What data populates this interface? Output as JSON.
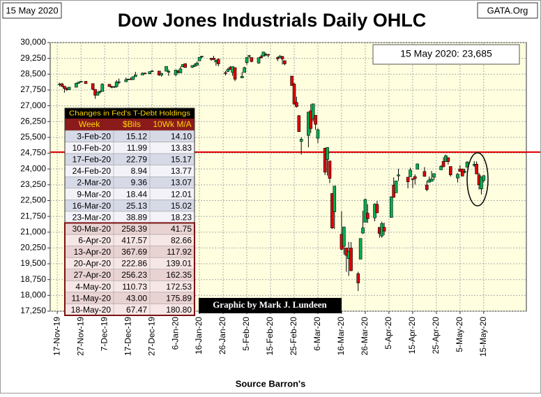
{
  "chart_data": {
    "type": "candlestick",
    "title": "Dow Jones Industrials Daily OHLC",
    "date_label": "15 May 2020",
    "source_label": "GATA.Org",
    "annotation": "15 May 2020: 23,685",
    "credit": "Graphic by Mark J. Lundeen",
    "xlabel": "Source Barron's",
    "up_color": "#00b050",
    "down_color": "#e00000",
    "hline": {
      "value": 24800,
      "color": "#e00000"
    },
    "grid": true,
    "xlim": [
      "14-Nov-19",
      "2-Jun-20"
    ],
    "xticks": [
      "17-Nov-19",
      "27-Nov-19",
      "7-Dec-19",
      "17-Dec-19",
      "27-Dec-19",
      "6-Jan-20",
      "16-Jan-20",
      "26-Jan-20",
      "5-Feb-20",
      "15-Feb-20",
      "25-Feb-20",
      "6-Mar-20",
      "16-Mar-20",
      "26-Mar-20",
      "5-Apr-20",
      "15-Apr-20",
      "25-Apr-20",
      "5-May-20",
      "15-May-20"
    ],
    "ylim": [
      17250,
      30000
    ],
    "yticks": [
      {
        "value": 17250,
        "label": "17,250"
      },
      {
        "value": 18000,
        "label": "18,000"
      },
      {
        "value": 18750,
        "label": "18,750"
      },
      {
        "value": 19500,
        "label": "19,500"
      },
      {
        "value": 20250,
        "label": "20,250"
      },
      {
        "value": 21000,
        "label": "21,000"
      },
      {
        "value": 21750,
        "label": "21,750"
      },
      {
        "value": 22500,
        "label": "22,500"
      },
      {
        "value": 23250,
        "label": "23,250"
      },
      {
        "value": 24000,
        "label": "24,000"
      },
      {
        "value": 24750,
        "label": "24,750"
      },
      {
        "value": 25500,
        "label": "25,500"
      },
      {
        "value": 26250,
        "label": "26,250"
      },
      {
        "value": 27000,
        "label": "27,000"
      },
      {
        "value": 27750,
        "label": "27,750"
      },
      {
        "value": 28500,
        "label": "28,500"
      },
      {
        "value": 29250,
        "label": "29,250"
      },
      {
        "value": 30000,
        "label": "30,000"
      }
    ],
    "x": [
      "18-Nov-19",
      "19-Nov-19",
      "20-Nov-19",
      "21-Nov-19",
      "22-Nov-19",
      "25-Nov-19",
      "26-Nov-19",
      "27-Nov-19",
      "29-Nov-19",
      "2-Dec-19",
      "3-Dec-19",
      "4-Dec-19",
      "5-Dec-19",
      "6-Dec-19",
      "9-Dec-19",
      "10-Dec-19",
      "11-Dec-19",
      "12-Dec-19",
      "13-Dec-19",
      "16-Dec-19",
      "17-Dec-19",
      "18-Dec-19",
      "19-Dec-19",
      "20-Dec-19",
      "23-Dec-19",
      "24-Dec-19",
      "26-Dec-19",
      "27-Dec-19",
      "30-Dec-19",
      "31-Dec-19",
      "2-Jan-20",
      "3-Jan-20",
      "6-Jan-20",
      "7-Jan-20",
      "8-Jan-20",
      "9-Jan-20",
      "10-Jan-20",
      "13-Jan-20",
      "14-Jan-20",
      "15-Jan-20",
      "16-Jan-20",
      "17-Jan-20",
      "21-Jan-20",
      "22-Jan-20",
      "23-Jan-20",
      "24-Jan-20",
      "27-Jan-20",
      "28-Jan-20",
      "29-Jan-20",
      "30-Jan-20",
      "31-Jan-20",
      "3-Feb-20",
      "4-Feb-20",
      "5-Feb-20",
      "6-Feb-20",
      "7-Feb-20",
      "10-Feb-20",
      "11-Feb-20",
      "12-Feb-20",
      "13-Feb-20",
      "14-Feb-20",
      "18-Feb-20",
      "19-Feb-20",
      "20-Feb-20",
      "21-Feb-20",
      "24-Feb-20",
      "25-Feb-20",
      "26-Feb-20",
      "27-Feb-20",
      "28-Feb-20",
      "2-Mar-20",
      "3-Mar-20",
      "4-Mar-20",
      "5-Mar-20",
      "6-Mar-20",
      "9-Mar-20",
      "10-Mar-20",
      "11-Mar-20",
      "12-Mar-20",
      "13-Mar-20",
      "16-Mar-20",
      "17-Mar-20",
      "18-Mar-20",
      "19-Mar-20",
      "20-Mar-20",
      "23-Mar-20",
      "24-Mar-20",
      "25-Mar-20",
      "26-Mar-20",
      "27-Mar-20",
      "30-Mar-20",
      "31-Mar-20",
      "1-Apr-20",
      "2-Apr-20",
      "3-Apr-20",
      "6-Apr-20",
      "7-Apr-20",
      "8-Apr-20",
      "9-Apr-20",
      "13-Apr-20",
      "14-Apr-20",
      "15-Apr-20",
      "16-Apr-20",
      "17-Apr-20",
      "20-Apr-20",
      "21-Apr-20",
      "22-Apr-20",
      "23-Apr-20",
      "24-Apr-20",
      "27-Apr-20",
      "28-Apr-20",
      "29-Apr-20",
      "30-Apr-20",
      "1-May-20",
      "4-May-20",
      "5-May-20",
      "6-May-20",
      "7-May-20",
      "8-May-20",
      "11-May-20",
      "12-May-20",
      "13-May-20",
      "14-May-20",
      "15-May-20"
    ],
    "open": [
      28000,
      28040,
      27930,
      27820,
      27770,
      27880,
      28070,
      28120,
      28160,
      28050,
      27780,
      27500,
      27650,
      27680,
      28020,
      27910,
      27880,
      27910,
      28130,
      28140,
      28240,
      28270,
      28240,
      28380,
      28460,
      28550,
      28520,
      28620,
      28650,
      28460,
      28640,
      28630,
      28470,
      28640,
      28560,
      28850,
      29000,
      28830,
      28870,
      28930,
      29130,
      29330,
      29250,
      29260,
      29080,
      29210,
      28570,
      28630,
      28820,
      28580,
      28810,
      28320,
      28580,
      29050,
      29340,
      29290,
      29030,
      29330,
      29350,
      29440,
      29440,
      29280,
      29280,
      29340,
      29140,
      28410,
      28030,
      27160,
      26530,
      25310,
      25590,
      26760,
      26380,
      26550,
      25460,
      24990,
      24450,
      24380,
      22840,
      21970,
      20900,
      20330,
      20250,
      19750,
      20250,
      19030,
      19720,
      20960,
      21470,
      21900,
      21680,
      22320,
      21230,
      20820,
      21230,
      21700,
      23240,
      22870,
      23670,
      23610,
      23630,
      23540,
      23640,
      23990,
      23880,
      23240,
      23370,
      23410,
      23610,
      23960,
      24360,
      24350,
      24540,
      24120,
      23570,
      24000,
      23990,
      23880,
      24080,
      24170,
      24230,
      23720,
      23050,
      23460
    ],
    "high": [
      28090,
      28090,
      27930,
      27880,
      27900,
      28090,
      28140,
      28180,
      28160,
      28070,
      27780,
      27680,
      27720,
      28070,
      28030,
      27950,
      27940,
      28220,
      28290,
      28340,
      28290,
      28350,
      28380,
      28610,
      28580,
      28580,
      28620,
      28700,
      28650,
      28550,
      28870,
      28720,
      28710,
      28690,
      28870,
      28960,
      29010,
      28910,
      29020,
      29100,
      29300,
      29370,
      29270,
      29370,
      29190,
      29240,
      28650,
      28800,
      28890,
      28860,
      28810,
      28600,
      28850,
      29310,
      29410,
      29290,
      29280,
      29420,
      29570,
      29520,
      29440,
      29340,
      29410,
      29370,
      29160,
      28410,
      28090,
      27430,
      26560,
      25510,
      26710,
      27080,
      27090,
      26550,
      25930,
      24990,
      25020,
      24380,
      22840,
      23190,
      21990,
      21270,
      20250,
      20540,
      20530,
      19120,
      20710,
      22020,
      22600,
      22330,
      22370,
      22480,
      21230,
      21500,
      21450,
      22700,
      23600,
      23430,
      24010,
      23610,
      24060,
      23550,
      23740,
      24260,
      24090,
      23440,
      23640,
      23910,
      23790,
      24180,
      24560,
      24680,
      24540,
      24120,
      23800,
      24180,
      24020,
      24010,
      24370,
      24370,
      24360,
      23820,
      23630,
      23690
    ],
    "low": [
      27920,
      27880,
      27620,
      27700,
      27740,
      27880,
      28040,
      28110,
      28050,
      27750,
      27330,
      27500,
      27570,
      27680,
      27900,
      27830,
      27850,
      27860,
      28030,
      28140,
      28210,
      28230,
      28230,
      28380,
      28460,
      28510,
      28500,
      28600,
      28420,
      28380,
      28640,
      28420,
      28420,
      28540,
      28560,
      28830,
      28800,
      28790,
      28840,
      28900,
      29120,
      29260,
      29130,
      29170,
      28900,
      28870,
      28440,
      28600,
      28700,
      28420,
      28170,
      28320,
      28580,
      28950,
      29280,
      29070,
      28990,
      29240,
      29350,
      29360,
      29300,
      29120,
      29280,
      28960,
      28920,
      27960,
      27060,
      26910,
      25770,
      24680,
      25030,
      25710,
      26270,
      25860,
      25230,
      23710,
      23690,
      23330,
      21150,
      21150,
      20140,
      19940,
      19120,
      18920,
      19150,
      18210,
      19720,
      20910,
      21470,
      21440,
      21520,
      21900,
      20740,
      20740,
      20860,
      21690,
      22650,
      22870,
      23430,
      23080,
      23630,
      23100,
      23260,
      23990,
      23630,
      22940,
      23370,
      23410,
      23460,
      23960,
      24090,
      24350,
      24210,
      23640,
      23360,
      23880,
      23660,
      23790,
      24080,
      24090,
      23760,
      23030,
      22790,
      23360
    ],
    "close": [
      28040,
      27930,
      27820,
      27770,
      27880,
      28070,
      28120,
      28160,
      28050,
      27780,
      27500,
      27650,
      27680,
      28020,
      27910,
      27880,
      27910,
      28130,
      28140,
      28240,
      28270,
      28240,
      28380,
      28460,
      28550,
      28520,
      28620,
      28650,
      28460,
      28540,
      28870,
      28630,
      28700,
      28580,
      28750,
      28960,
      28820,
      28910,
      28940,
      29030,
      29300,
      29350,
      29200,
      29190,
      29160,
      28990,
      28540,
      28720,
      28730,
      28860,
      28260,
      28400,
      28810,
      29290,
      29380,
      29100,
      29280,
      29280,
      29550,
      29420,
      29400,
      29230,
      29350,
      29220,
      28990,
      27960,
      27080,
      26960,
      25770,
      25410,
      26700,
      25920,
      27090,
      26120,
      25860,
      23850,
      25020,
      23550,
      21200,
      23190,
      20190,
      21240,
      19900,
      20090,
      19170,
      18590,
      20700,
      21200,
      22550,
      21640,
      22330,
      21920,
      20940,
      21410,
      21050,
      22680,
      22650,
      23430,
      23720,
      23390,
      23950,
      23500,
      23540,
      24240,
      23650,
      23020,
      23480,
      23520,
      23780,
      24130,
      24100,
      24630,
      24350,
      23720,
      23750,
      23880,
      23660,
      23880,
      24330,
      24220,
      23760,
      23250,
      23630,
      23685
    ],
    "table": {
      "title": "Changes in Fed's T-Debt Holdings",
      "columns": [
        "Week",
        "$Bils",
        "10Wk M/A"
      ],
      "rows": [
        [
          "3-Feb-20",
          "15.12",
          "14.10"
        ],
        [
          "10-Feb-20",
          "11.99",
          "13.83"
        ],
        [
          "17-Feb-20",
          "22.79",
          "15.17"
        ],
        [
          "24-Feb-20",
          "8.94",
          "13.77"
        ],
        [
          "2-Mar-20",
          "9.36",
          "13.07"
        ],
        [
          "9-Mar-20",
          "18.44",
          "12.01"
        ],
        [
          "16-Mar-20",
          "25.13",
          "15.02"
        ],
        [
          "23-Mar-20",
          "38.89",
          "18.23"
        ],
        [
          "30-Mar-20",
          "258.39",
          "41.75"
        ],
        [
          "6-Apr-20",
          "417.57",
          "82.66"
        ],
        [
          "13-Apr-20",
          "367.69",
          "117.92"
        ],
        [
          "20-Apr-20",
          "222.86",
          "139.01"
        ],
        [
          "27-Apr-20",
          "256.23",
          "162.35"
        ],
        [
          "4-May-20",
          "110.73",
          "172.53"
        ],
        [
          "11-May-20",
          "43.00",
          "175.89"
        ],
        [
          "18-May-20",
          "67.47",
          "180.80"
        ]
      ]
    }
  }
}
